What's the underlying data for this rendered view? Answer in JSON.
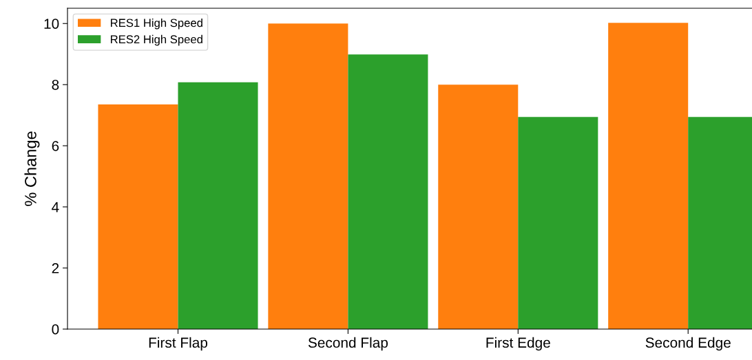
{
  "chart_data": {
    "type": "bar",
    "ylabel": "% Change",
    "categories": [
      "First Flap",
      "Second Flap",
      "First Edge",
      "Second Edge"
    ],
    "series": [
      {
        "name": "RES1 High Speed",
        "color": "#ff7f0e",
        "values": [
          7.35,
          10.0,
          8.0,
          10.02
        ]
      },
      {
        "name": "RES2 High Speed",
        "color": "#2ca02c",
        "values": [
          8.08,
          8.99,
          6.94,
          6.94
        ]
      }
    ],
    "ylim": [
      0,
      10.5
    ],
    "yticks": [
      0,
      2,
      4,
      6,
      8,
      10
    ],
    "grid": false,
    "legend": "top left"
  }
}
